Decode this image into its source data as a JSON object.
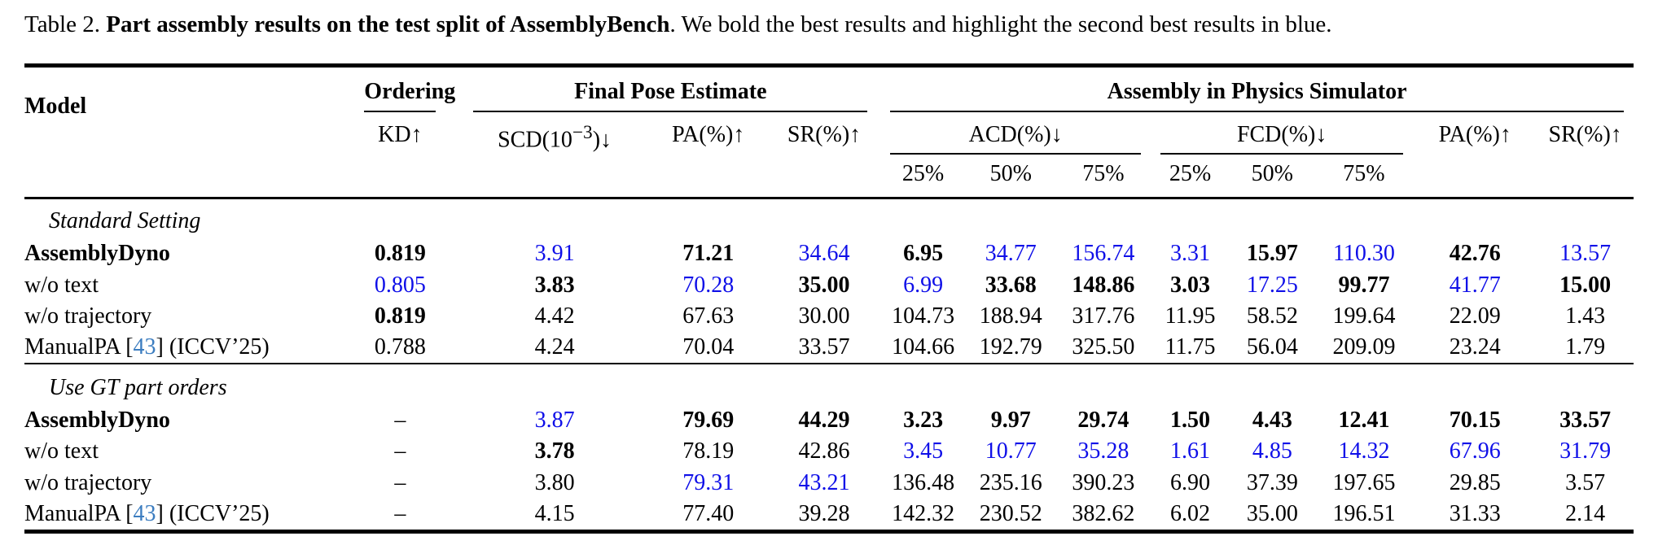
{
  "caption": {
    "prefix": "Table 2. ",
    "bold": "Part assembly results on the test split of AssemblyBench",
    "rest": ". We bold the best results and highlight the second best results in blue."
  },
  "colors": {
    "second_best_blue": "#0f0fe8",
    "citation_blue": "#3c7dc0",
    "text": "#000000"
  },
  "table": {
    "header": {
      "model": "Model",
      "groups": {
        "ordering": "Ordering",
        "final_pose": "Final Pose Estimate",
        "physics_sim": "Assembly in Physics Simulator"
      },
      "metrics": {
        "kd": "KD↑",
        "scd_pre": "SCD(10",
        "scd_sup": "−3",
        "scd_post": ")↓",
        "pa_pose": "PA(%)↑",
        "sr_pose": "SR(%)↑",
        "acd": "ACD(%)↓",
        "fcd": "FCD(%)↓",
        "pa_sim": "PA(%)↑",
        "sr_sim": "SR(%)↑"
      },
      "percentiles": [
        "25%",
        "50%",
        "75%"
      ]
    },
    "sections": [
      {
        "title": "Standard Setting",
        "rows": [
          {
            "bold": true,
            "model": [
              {
                "t": "AssemblyDyno"
              }
            ],
            "cells": [
              {
                "v": "0.819",
                "s": "best"
              },
              {
                "v": "3.91",
                "s": "second"
              },
              {
                "v": "71.21",
                "s": "best"
              },
              {
                "v": "34.64",
                "s": "second"
              },
              {
                "v": "6.95",
                "s": "best"
              },
              {
                "v": "34.77",
                "s": "second"
              },
              {
                "v": "156.74",
                "s": "second"
              },
              {
                "v": "3.31",
                "s": "second"
              },
              {
                "v": "15.97",
                "s": "best"
              },
              {
                "v": "110.30",
                "s": "second"
              },
              {
                "v": "42.76",
                "s": "best"
              },
              {
                "v": "13.57",
                "s": "second"
              }
            ]
          },
          {
            "bold": false,
            "model": [
              {
                "t": "w/o text"
              }
            ],
            "cells": [
              {
                "v": "0.805",
                "s": "second"
              },
              {
                "v": "3.83",
                "s": "best"
              },
              {
                "v": "70.28",
                "s": "second"
              },
              {
                "v": "35.00",
                "s": "best"
              },
              {
                "v": "6.99",
                "s": "second"
              },
              {
                "v": "33.68",
                "s": "best"
              },
              {
                "v": "148.86",
                "s": "best"
              },
              {
                "v": "3.03",
                "s": "best"
              },
              {
                "v": "17.25",
                "s": "second"
              },
              {
                "v": "99.77",
                "s": "best"
              },
              {
                "v": "41.77",
                "s": "second"
              },
              {
                "v": "15.00",
                "s": "best"
              }
            ]
          },
          {
            "bold": false,
            "model": [
              {
                "t": "w/o trajectory"
              }
            ],
            "cells": [
              {
                "v": "0.819",
                "s": "best"
              },
              {
                "v": "4.42",
                "s": ""
              },
              {
                "v": "67.63",
                "s": ""
              },
              {
                "v": "30.00",
                "s": ""
              },
              {
                "v": "104.73",
                "s": ""
              },
              {
                "v": "188.94",
                "s": ""
              },
              {
                "v": "317.76",
                "s": ""
              },
              {
                "v": "11.95",
                "s": ""
              },
              {
                "v": "58.52",
                "s": ""
              },
              {
                "v": "199.64",
                "s": ""
              },
              {
                "v": "22.09",
                "s": ""
              },
              {
                "v": "1.43",
                "s": ""
              }
            ]
          },
          {
            "bold": false,
            "model": [
              {
                "t": "ManualPA ["
              },
              {
                "t": "43",
                "c": "cite"
              },
              {
                "t": "] (ICCV’25)"
              }
            ],
            "cells": [
              {
                "v": "0.788",
                "s": ""
              },
              {
                "v": "4.24",
                "s": ""
              },
              {
                "v": "70.04",
                "s": ""
              },
              {
                "v": "33.57",
                "s": ""
              },
              {
                "v": "104.66",
                "s": ""
              },
              {
                "v": "192.79",
                "s": ""
              },
              {
                "v": "325.50",
                "s": ""
              },
              {
                "v": "11.75",
                "s": ""
              },
              {
                "v": "56.04",
                "s": ""
              },
              {
                "v": "209.09",
                "s": ""
              },
              {
                "v": "23.24",
                "s": ""
              },
              {
                "v": "1.79",
                "s": ""
              }
            ]
          }
        ]
      },
      {
        "title": "Use GT part orders",
        "rows": [
          {
            "bold": true,
            "model": [
              {
                "t": "AssemblyDyno"
              }
            ],
            "cells": [
              {
                "v": "–",
                "s": ""
              },
              {
                "v": "3.87",
                "s": "second"
              },
              {
                "v": "79.69",
                "s": "best"
              },
              {
                "v": "44.29",
                "s": "best"
              },
              {
                "v": "3.23",
                "s": "best"
              },
              {
                "v": "9.97",
                "s": "best"
              },
              {
                "v": "29.74",
                "s": "best"
              },
              {
                "v": "1.50",
                "s": "best"
              },
              {
                "v": "4.43",
                "s": "best"
              },
              {
                "v": "12.41",
                "s": "best"
              },
              {
                "v": "70.15",
                "s": "best"
              },
              {
                "v": "33.57",
                "s": "best"
              }
            ]
          },
          {
            "bold": false,
            "model": [
              {
                "t": "w/o text"
              }
            ],
            "cells": [
              {
                "v": "–",
                "s": ""
              },
              {
                "v": "3.78",
                "s": "best"
              },
              {
                "v": "78.19",
                "s": ""
              },
              {
                "v": "42.86",
                "s": ""
              },
              {
                "v": "3.45",
                "s": "second"
              },
              {
                "v": "10.77",
                "s": "second"
              },
              {
                "v": "35.28",
                "s": "second"
              },
              {
                "v": "1.61",
                "s": "second"
              },
              {
                "v": "4.85",
                "s": "second"
              },
              {
                "v": "14.32",
                "s": "second"
              },
              {
                "v": "67.96",
                "s": "second"
              },
              {
                "v": "31.79",
                "s": "second"
              }
            ]
          },
          {
            "bold": false,
            "model": [
              {
                "t": "w/o trajectory"
              }
            ],
            "cells": [
              {
                "v": "–",
                "s": ""
              },
              {
                "v": "3.80",
                "s": ""
              },
              {
                "v": "79.31",
                "s": "second"
              },
              {
                "v": "43.21",
                "s": "second"
              },
              {
                "v": "136.48",
                "s": ""
              },
              {
                "v": "235.16",
                "s": ""
              },
              {
                "v": "390.23",
                "s": ""
              },
              {
                "v": "6.90",
                "s": ""
              },
              {
                "v": "37.39",
                "s": ""
              },
              {
                "v": "197.65",
                "s": ""
              },
              {
                "v": "29.85",
                "s": ""
              },
              {
                "v": "3.57",
                "s": ""
              }
            ]
          },
          {
            "bold": false,
            "model": [
              {
                "t": "ManualPA ["
              },
              {
                "t": "43",
                "c": "cite"
              },
              {
                "t": "] (ICCV’25)"
              }
            ],
            "cells": [
              {
                "v": "–",
                "s": ""
              },
              {
                "v": "4.15",
                "s": ""
              },
              {
                "v": "77.40",
                "s": ""
              },
              {
                "v": "39.28",
                "s": ""
              },
              {
                "v": "142.32",
                "s": ""
              },
              {
                "v": "230.52",
                "s": ""
              },
              {
                "v": "382.62",
                "s": ""
              },
              {
                "v": "6.02",
                "s": ""
              },
              {
                "v": "35.00",
                "s": ""
              },
              {
                "v": "196.51",
                "s": ""
              },
              {
                "v": "31.33",
                "s": ""
              },
              {
                "v": "2.14",
                "s": ""
              }
            ]
          }
        ]
      }
    ]
  }
}
